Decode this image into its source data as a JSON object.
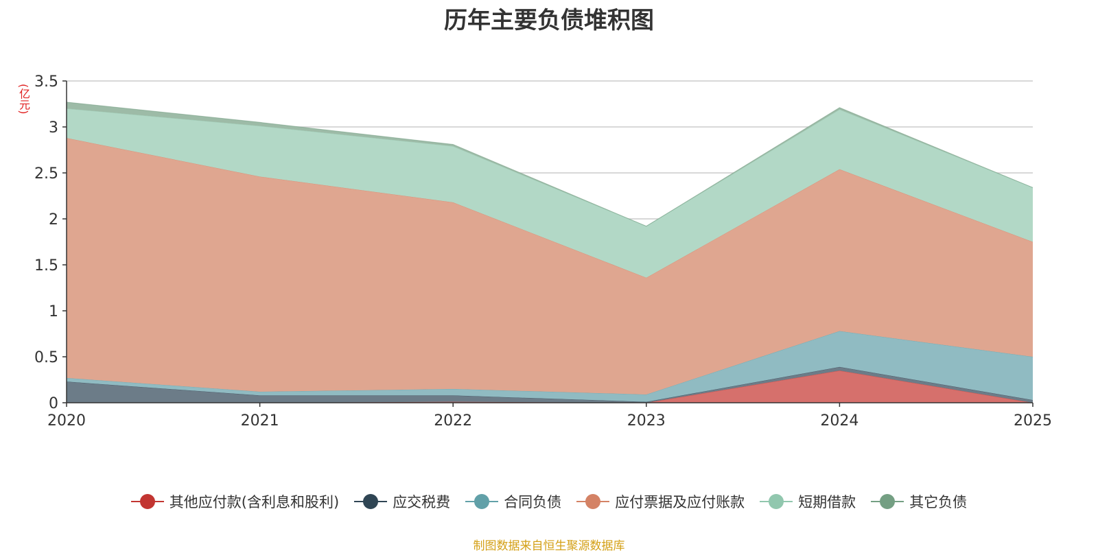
{
  "chart_data": {
    "type": "area",
    "stacked": true,
    "title": "历年主要负债堆积图",
    "y_unit": "(亿元)",
    "x": [
      "2020",
      "2021",
      "2022",
      "2023",
      "2024",
      "2025"
    ],
    "ylim": [
      0,
      3.5
    ],
    "yticks": [
      0,
      0.5,
      1,
      1.5,
      2,
      2.5,
      3,
      3.5
    ],
    "ytick_labels": [
      "0",
      "0.5",
      "1",
      "1.5",
      "2",
      "2.5",
      "3",
      "3.5"
    ],
    "grid": true,
    "legend_position": "bottom",
    "series": [
      {
        "name": "其他应付款(含利息和股利)",
        "values": [
          0.0,
          0.0,
          0.01,
          0.0,
          0.35,
          0.0
        ],
        "color": "#c23531",
        "fill": "#d6706c"
      },
      {
        "name": "应交税费",
        "values": [
          0.23,
          0.08,
          0.07,
          0.01,
          0.04,
          0.03
        ],
        "color": "#2f4554",
        "fill": "#6c7c88"
      },
      {
        "name": "合同负债",
        "values": [
          0.04,
          0.04,
          0.07,
          0.08,
          0.39,
          0.47
        ],
        "color": "#61a0a8",
        "fill": "#90bbc2"
      },
      {
        "name": "应付票据及应付账款",
        "values": [
          2.61,
          2.34,
          2.03,
          1.27,
          1.76,
          1.25
        ],
        "color": "#d48265",
        "fill": "#dfa690"
      },
      {
        "name": "短期借款",
        "values": [
          0.32,
          0.55,
          0.61,
          0.56,
          0.65,
          0.59
        ],
        "color": "#91c7ae",
        "fill": "#b2d8c6"
      },
      {
        "name": "其它负债",
        "values": [
          0.07,
          0.04,
          0.02,
          0.0,
          0.02,
          0.0
        ],
        "color": "#749f83",
        "fill": "#9dbba7"
      }
    ]
  },
  "footer": {
    "source": "制图数据来自恒生聚源数据库"
  }
}
